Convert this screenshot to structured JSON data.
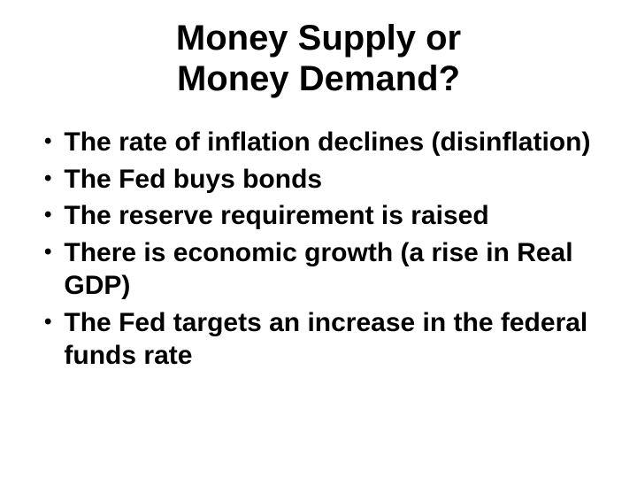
{
  "slide": {
    "title_line1": "Money Supply or",
    "title_line2": "Money Demand?",
    "title_fontsize": 40,
    "title_color": "#000000",
    "bullets": [
      "The rate of inflation declines (disinflation)",
      "The Fed buys bonds",
      "The reserve requirement is raised",
      "There is economic growth (a rise in Real GDP)",
      "The Fed targets an increase in the federal funds rate"
    ],
    "bullet_fontsize": 30,
    "bullet_color": "#000000",
    "background_color": "#ffffff",
    "bullet_marker": "•"
  }
}
